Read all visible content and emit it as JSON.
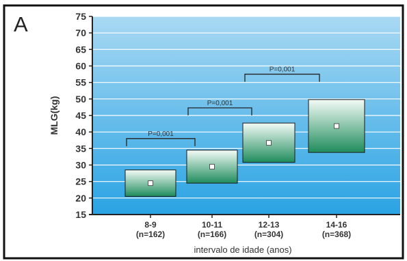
{
  "panel_label": "A",
  "chart_data": {
    "type": "box",
    "title": "",
    "xlabel": "intervalo de idade (anos)",
    "ylabel": "MLG(kg)",
    "ylim": [
      15,
      75
    ],
    "yticks": [
      15,
      20,
      25,
      30,
      35,
      40,
      45,
      50,
      55,
      60,
      65,
      70,
      75
    ],
    "grid": true,
    "categories": [
      {
        "label": "8-9",
        "n": "(n=162)",
        "low": 20.5,
        "high": 28.5,
        "mean": 24.5
      },
      {
        "label": "10-11",
        "n": "(n=166)",
        "low": 24.5,
        "high": 34.5,
        "mean": 29.5
      },
      {
        "label": "12-13",
        "n": "(n=304)",
        "low": 30.8,
        "high": 42.7,
        "mean": 36.7
      },
      {
        "label": "14-16",
        "n": "(n=368)",
        "low": 33.8,
        "high": 49.8,
        "mean": 41.8
      }
    ],
    "comparisons": [
      {
        "from": 0,
        "to": 1,
        "y": 38.0,
        "label": "P=0,001"
      },
      {
        "from": 1,
        "to": 2,
        "y": 47.3,
        "label": "P=0,001"
      },
      {
        "from": 2,
        "to": 3,
        "y": 57.5,
        "label": "P=0,001"
      }
    ],
    "colors": {
      "bg_top": "#a9d9f3",
      "bg_bottom": "#2aa3e3",
      "box_top": "#f3fbf6",
      "box_bottom": "#1f8c5c"
    }
  }
}
